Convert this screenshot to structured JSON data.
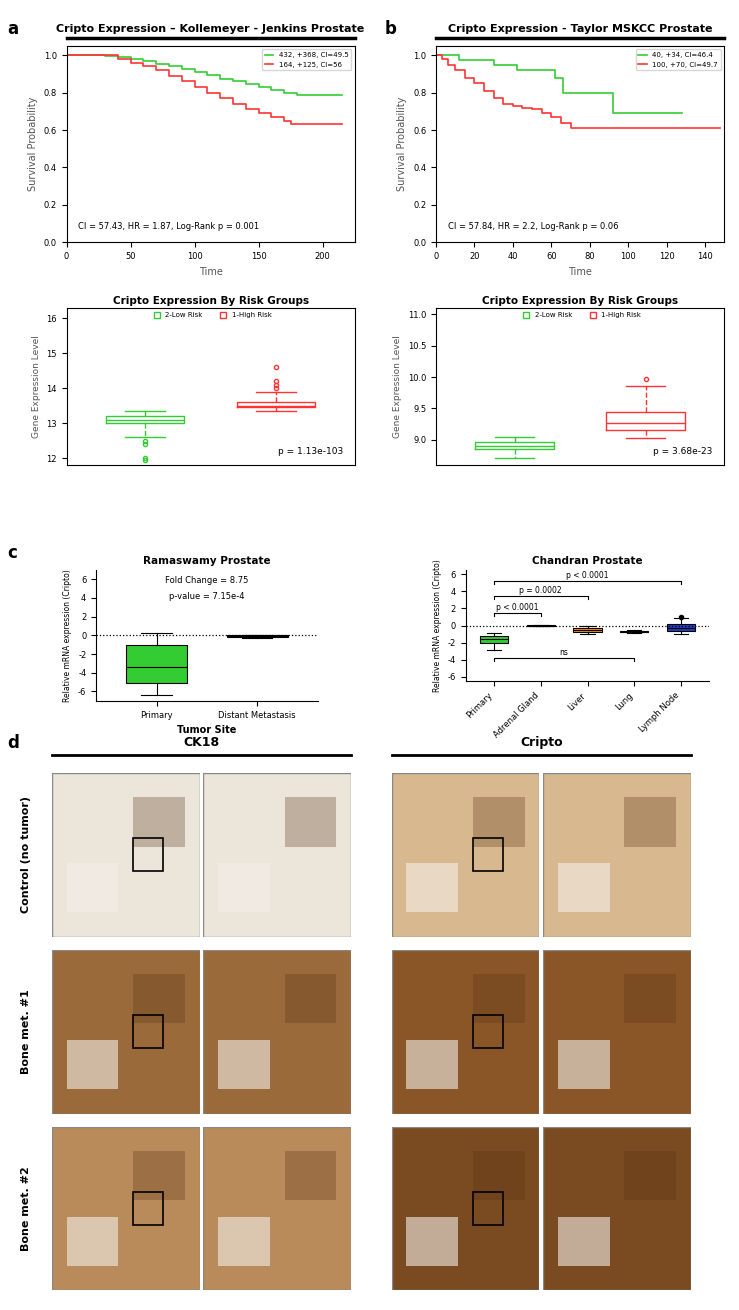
{
  "chart_data": [
    {
      "panel": "a",
      "type": "step",
      "title": "Cripto Expression – Kollemeyer - Jenkins Prostate",
      "xlabel": "Time",
      "ylabel": "Survival Probability",
      "xlim": [
        0,
        225
      ],
      "xticks": [
        0,
        50,
        100,
        150,
        200
      ],
      "ylim": [
        0,
        1.05
      ],
      "yticks": [
        {
          "value": 0,
          "label": "0.0"
        },
        {
          "value": 0.2,
          "label": "0.2"
        },
        {
          "value": 0.4,
          "label": "0.4"
        },
        {
          "value": 0.6,
          "label": "0.6"
        },
        {
          "value": 0.8,
          "label": "0.8"
        },
        {
          "value": 1,
          "label": "1.0"
        }
      ],
      "legend": "upper right",
      "annotations": [
        "CI = 57.43, HR = 1.87, Log-Rank p = 0.001"
      ],
      "series": [
        {
          "name": "432, +368, CI=49.5",
          "color": "#33cc33",
          "x": [
            0,
            20,
            30,
            40,
            50,
            60,
            70,
            80,
            90,
            100,
            110,
            120,
            130,
            140,
            150,
            160,
            170,
            180,
            215
          ],
          "values": [
            1,
            1,
            0.995,
            0.99,
            0.98,
            0.97,
            0.955,
            0.94,
            0.925,
            0.91,
            0.895,
            0.875,
            0.86,
            0.845,
            0.83,
            0.815,
            0.8,
            0.79,
            0.79
          ]
        },
        {
          "name": "164, +125, CI=56",
          "color": "#ff3333",
          "x": [
            0,
            25,
            40,
            50,
            60,
            70,
            80,
            90,
            100,
            110,
            120,
            130,
            140,
            150,
            160,
            170,
            175,
            215
          ],
          "values": [
            1,
            1,
            0.98,
            0.96,
            0.94,
            0.92,
            0.89,
            0.86,
            0.83,
            0.8,
            0.77,
            0.74,
            0.71,
            0.69,
            0.67,
            0.65,
            0.63,
            0.63
          ]
        }
      ]
    },
    {
      "panel": "b",
      "type": "step",
      "title": "Cripto Expression - Taylor MSKCC Prostate",
      "xlabel": "Time",
      "ylabel": "Survival Probability",
      "xlim": [
        0,
        150
      ],
      "xticks": [
        0,
        20,
        40,
        60,
        80,
        100,
        120,
        140
      ],
      "ylim": [
        0,
        1.05
      ],
      "yticks": [
        {
          "value": 0,
          "label": "0.0"
        },
        {
          "value": 0.2,
          "label": "0.2"
        },
        {
          "value": 0.4,
          "label": "0.4"
        },
        {
          "value": 0.6,
          "label": "0.6"
        },
        {
          "value": 0.8,
          "label": "0.8"
        },
        {
          "value": 1,
          "label": "1.0"
        }
      ],
      "legend": "upper right",
      "annotations": [
        "CI = 57.84, HR = 2.2, Log-Rank p = 0.06"
      ],
      "series": [
        {
          "name": "40, +34, CI=46.4",
          "color": "#33cc33",
          "x": [
            0,
            12,
            20,
            30,
            42,
            52,
            62,
            66,
            92,
            128
          ],
          "values": [
            1,
            0.975,
            0.975,
            0.95,
            0.92,
            0.92,
            0.88,
            0.8,
            0.69,
            0.69
          ]
        },
        {
          "name": "100, +70, CI=49.7",
          "color": "#ff3333",
          "x": [
            0,
            3,
            6,
            10,
            15,
            20,
            25,
            30,
            35,
            40,
            45,
            50,
            55,
            60,
            65,
            70,
            148
          ],
          "values": [
            1,
            0.98,
            0.95,
            0.92,
            0.88,
            0.85,
            0.81,
            0.77,
            0.74,
            0.73,
            0.72,
            0.71,
            0.69,
            0.67,
            0.64,
            0.61,
            0.61
          ]
        }
      ]
    },
    {
      "type": "box",
      "title": "Cripto Expression By Risk Groups",
      "ylabel": "Gene Expression Level",
      "ylim": [
        11.8,
        16.3
      ],
      "yticks": [
        12,
        13,
        14,
        15,
        16
      ],
      "tick_labels": "y",
      "legend": "upper center",
      "annotations": [
        "p = 1.13e-103"
      ],
      "series": [
        {
          "name": "2-Low Risk",
          "color": "#33cc33",
          "stats": {
            "whislo": 12.6,
            "q1": 13.0,
            "med": 13.1,
            "q3": 13.2,
            "whishi": 13.35,
            "fliers": [
              12.5,
              12.4,
              12.0,
              11.95
            ]
          }
        },
        {
          "name": "1-High Risk",
          "color": "#ff3333",
          "stats": {
            "whislo": 13.35,
            "q1": 13.45,
            "med": 13.5,
            "q3": 13.6,
            "whishi": 13.9,
            "fliers": [
              14.0,
              14.1,
              14.2,
              14.6
            ]
          }
        }
      ]
    },
    {
      "type": "box",
      "title": "Cripto Expression By Risk Groups",
      "ylabel": "Gene Expression Level",
      "ylim": [
        8.6,
        11.1
      ],
      "yticks": [
        {
          "value": 9,
          "label": "9.0"
        },
        9.5,
        {
          "value": 10,
          "label": "10.0"
        },
        10.5,
        {
          "value": 11,
          "label": "11.0"
        }
      ],
      "tick_labels": "y",
      "legend": "upper center",
      "annotations": [
        "p = 3.68e-23"
      ],
      "series": [
        {
          "name": "2-Low Risk",
          "color": "#33cc33",
          "stats": {
            "whislo": 8.72,
            "q1": 8.85,
            "med": 8.9,
            "q3": 8.97,
            "whishi": 9.05,
            "fliers": []
          }
        },
        {
          "name": "1-High Risk",
          "color": "#ff3333",
          "stats": {
            "whislo": 9.03,
            "q1": 9.15,
            "med": 9.27,
            "q3": 9.45,
            "whishi": 9.85,
            "fliers": [
              9.97
            ]
          }
        }
      ]
    },
    {
      "panel": "c",
      "type": "box",
      "title": "Ramaswamy Prostate",
      "xlabel": "Tumor Site",
      "ylabel": "Relative mRNA expression (Cripto)",
      "ylim": [
        -7,
        7
      ],
      "yticks": [
        -6,
        -4,
        -2,
        0,
        2,
        4,
        6
      ],
      "reference_line": 0,
      "annotations": [
        "Fold Change = 8.75",
        "p-value = 7.15e-4"
      ],
      "categories": [
        "Primary",
        "Distant Metastasis"
      ],
      "colors": [
        "#33cc33",
        "#222222"
      ],
      "boxes": [
        {
          "whislo": -6.4,
          "q1": -5.1,
          "med": -3.4,
          "q3": -1.0,
          "whishi": 0.2,
          "fliers": []
        },
        {
          "whislo": -0.3,
          "q1": -0.2,
          "med": -0.1,
          "q3": 0.0,
          "whishi": 0.05,
          "fliers": []
        }
      ]
    },
    {
      "type": "box",
      "title": "Chandran Prostate",
      "ylabel": "Relative mRNA expression (Cripto)",
      "ylim": [
        -6.5,
        6.5
      ],
      "yticks": [
        -6,
        -4,
        -2,
        0,
        2,
        4,
        6
      ],
      "reference_line": 0,
      "categories": [
        "Primary",
        "Adrenal Gland",
        "Liver",
        "Lung",
        "Lymph Node"
      ],
      "colors": [
        "#33cc33",
        "#222222",
        "#ff8c1a",
        "#999999",
        "#1f3fbf"
      ],
      "boxes": [
        {
          "whislo": -2.8,
          "q1": -2.0,
          "med": -1.6,
          "q3": -1.2,
          "whishi": -0.9,
          "fliers": []
        },
        {
          "whislo": -0.1,
          "q1": -0.05,
          "med": 0.0,
          "q3": 0.05,
          "whishi": 0.1,
          "fliers": []
        },
        {
          "whislo": -1.0,
          "q1": -0.8,
          "med": -0.5,
          "q3": -0.3,
          "whishi": -0.1,
          "fliers": []
        },
        {
          "whislo": -0.9,
          "q1": -0.8,
          "med": -0.7,
          "q3": -0.6,
          "whishi": -0.5,
          "fliers": []
        },
        {
          "whislo": -1.0,
          "q1": -0.6,
          "med": -0.3,
          "q3": 0.2,
          "whishi": 0.9,
          "fliers": [
            1.0
          ]
        }
      ],
      "comparisons": [
        {
          "groups": [
            0,
            4
          ],
          "label": "p < 0.0001",
          "y": 5.2
        },
        {
          "groups": [
            0,
            2
          ],
          "label": "p = 0.0002",
          "y": 3.5
        },
        {
          "groups": [
            0,
            1
          ],
          "label": "p < 0.0001",
          "y": 1.5
        },
        {
          "groups": [
            0,
            3
          ],
          "label": "ns",
          "y": -3.8
        }
      ]
    }
  ],
  "micrographs": {
    "panel": "d",
    "columns": [
      "CK18",
      "Cripto"
    ],
    "rows": [
      "Control (no tumor)",
      "Bone met. #1",
      "Bone met. #2"
    ]
  }
}
